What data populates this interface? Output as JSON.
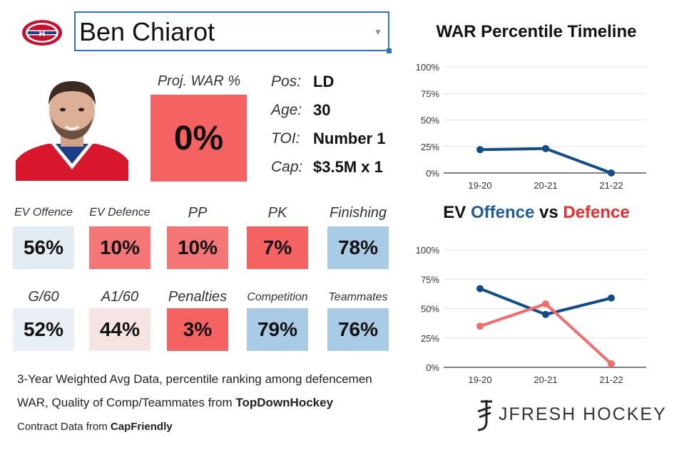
{
  "player": {
    "name": "Ben Chiarot",
    "team_logo": "montreal-canadiens-logo",
    "photo": "player-headshot"
  },
  "projected": {
    "label": "Proj. WAR %",
    "value": "0%",
    "color": "#f46262"
  },
  "info": [
    {
      "label": "Pos:",
      "value": "LD"
    },
    {
      "label": "Age:",
      "value": "30"
    },
    {
      "label": "TOI:",
      "value": "Number 1"
    },
    {
      "label": "Cap:",
      "value": "$3.5M x 1"
    }
  ],
  "stats": [
    {
      "label": "EV Offence",
      "value": "56%",
      "color": "#e3ebf3"
    },
    {
      "label": "EV Defence",
      "value": "10%",
      "color": "#f57676"
    },
    {
      "label": "PP",
      "value": "10%",
      "color": "#f57676"
    },
    {
      "label": "PK",
      "value": "7%",
      "color": "#f46262"
    },
    {
      "label": "Finishing",
      "value": "78%",
      "color": "#a8cbe6"
    },
    {
      "label": "G/60",
      "value": "52%",
      "color": "#e9eff5"
    },
    {
      "label": "A1/60",
      "value": "44%",
      "color": "#f6e3e3"
    },
    {
      "label": "Penalties",
      "value": "3%",
      "color": "#f46262"
    },
    {
      "label": "Competition",
      "value": "79%",
      "color": "#a8cbe6"
    },
    {
      "label": "Teammates",
      "value": "76%",
      "color": "#a8cbe6"
    }
  ],
  "footer": {
    "line1": "3-Year Weighted Avg Data, percentile ranking among defencemen",
    "line2_prefix": "WAR, Quality of Comp/Teammates from ",
    "line2_source": "TopDownHockey",
    "line3_prefix": "Contract Data from ",
    "line3_source": "CapFriendly"
  },
  "brand": {
    "name": "JFRESH HOCKEY"
  },
  "chart_data": [
    {
      "type": "line",
      "title": "WAR Percentile Timeline",
      "categories": [
        "19-20",
        "20-21",
        "21-22"
      ],
      "series": [
        {
          "name": "WAR",
          "values": [
            22,
            23,
            0
          ],
          "color": "#0f4c8a"
        }
      ],
      "ylim": [
        0,
        100
      ],
      "yticks": [
        "0%",
        "25%",
        "50%",
        "75%",
        "100%"
      ]
    },
    {
      "type": "line",
      "title_parts": {
        "offence": "Offence",
        "vs": "vs",
        "defence": "Defence",
        "ev": "EV"
      },
      "categories": [
        "19-20",
        "20-21",
        "21-22"
      ],
      "series": [
        {
          "name": "EV Offence",
          "values": [
            67,
            45,
            59
          ],
          "color": "#0f4c8a"
        },
        {
          "name": "EV Defence",
          "values": [
            35,
            54,
            3
          ],
          "color": "#f26c6c"
        }
      ],
      "ylim": [
        0,
        100
      ],
      "yticks": [
        "0%",
        "25%",
        "50%",
        "75%",
        "100%"
      ]
    }
  ]
}
